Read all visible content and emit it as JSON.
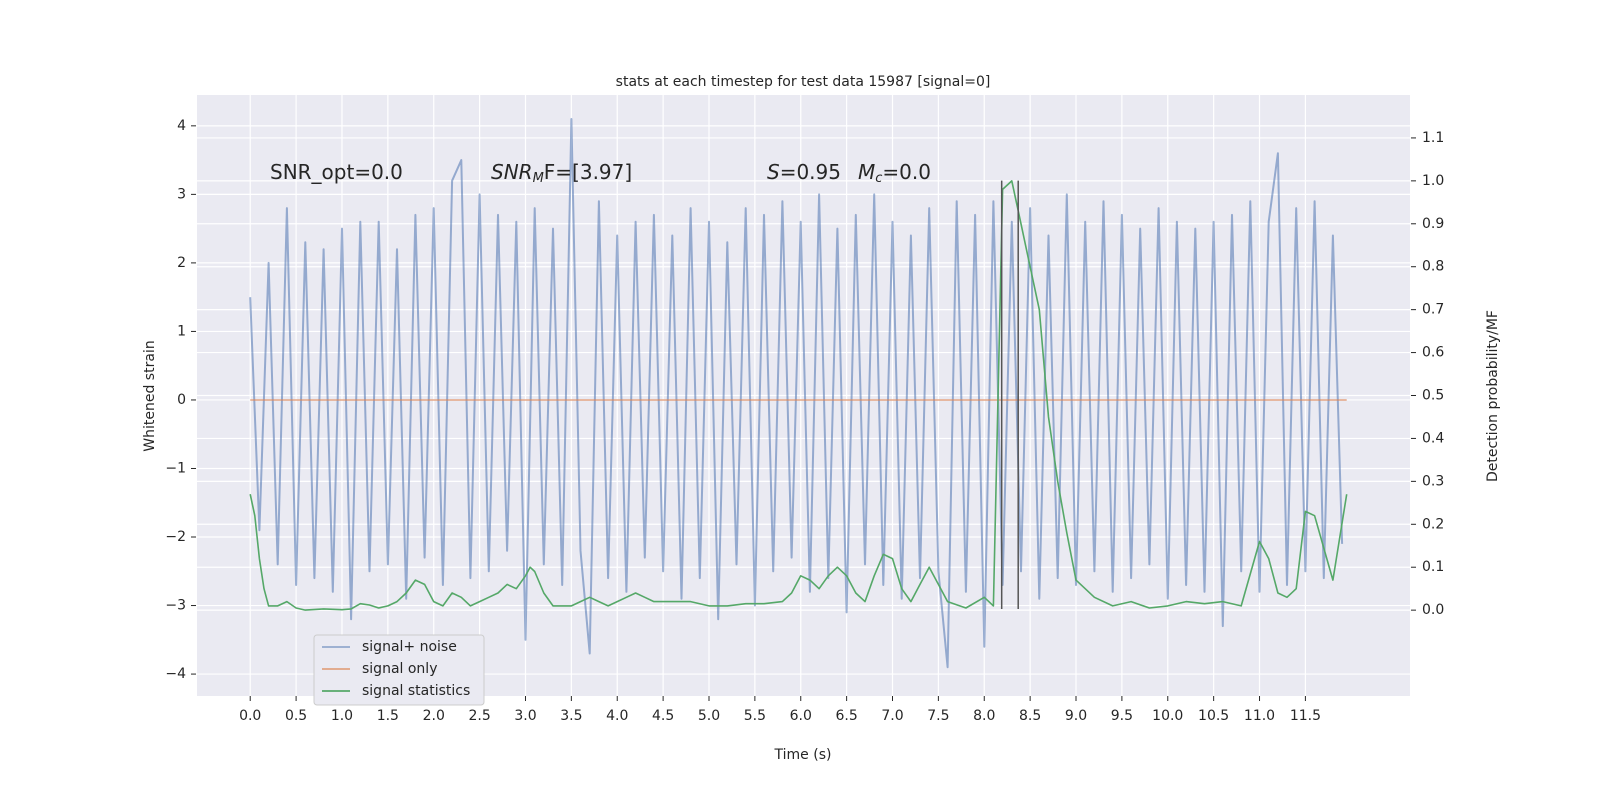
{
  "chart_data": {
    "type": "line",
    "title": "stats at each timestep for test data 15987 [signal=0]",
    "xlabel": "Time (s)",
    "ylabel": "Whitened strain",
    "y2label": "Detection probability/MF",
    "xlim": [
      -0.58,
      12.64
    ],
    "ylim": [
      -4.32,
      4.45
    ],
    "y2lim": [
      -0.2,
      1.2
    ],
    "xticks": [
      {
        "value": 0,
        "label": "0.0"
      },
      0.5,
      {
        "value": 1,
        "label": "1.0"
      },
      1.5,
      {
        "value": 2,
        "label": "2.0"
      },
      2.5,
      {
        "value": 3,
        "label": "3.0"
      },
      3.5,
      {
        "value": 4,
        "label": "4.0"
      },
      4.5,
      {
        "value": 5,
        "label": "5.0"
      },
      5.5,
      {
        "value": 6,
        "label": "6.0"
      },
      6.5,
      {
        "value": 7,
        "label": "7.0"
      },
      7.5,
      {
        "value": 8,
        "label": "8.0"
      },
      8.5,
      {
        "value": 9,
        "label": "9.0"
      },
      9.5,
      {
        "value": 10,
        "label": "10.0"
      },
      10.5,
      {
        "value": 11,
        "label": "11.0"
      },
      11.5
    ],
    "yticks": [
      {
        "value": -4,
        "label": "−4"
      },
      {
        "value": -3,
        "label": "−3"
      },
      {
        "value": -2,
        "label": "−2"
      },
      {
        "value": -1,
        "label": "−1"
      },
      0,
      1,
      2,
      3,
      4
    ],
    "y2ticks": [
      {
        "value": 0,
        "label": "0.0"
      },
      0.1,
      0.2,
      0.3,
      0.4,
      0.5,
      0.6,
      0.7,
      0.8,
      0.9,
      {
        "value": 1,
        "label": "1.0"
      },
      1.1
    ],
    "grid": true,
    "legend": "lower left",
    "annotations": [
      [
        "SNR_opt=0.0"
      ],
      [
        "SNR",
        "M",
        "F=[3.97]"
      ],
      [
        "S",
        "=0.95"
      ],
      [
        "M",
        "c",
        "=0.0"
      ]
    ],
    "markers": {
      "x": [
        8.19,
        8.37
      ],
      "ymin": -3.05,
      "ymax": 3.2,
      "color": "#555555"
    },
    "series": [
      {
        "name": "signal+ noise",
        "color": "#4c72b0",
        "opacity": 0.55,
        "x": [
          0,
          0.1,
          0.2,
          0.3,
          0.4,
          0.5,
          0.6,
          0.7,
          0.8,
          0.9,
          1,
          1.1,
          1.2,
          1.3,
          1.4,
          1.5,
          1.6,
          1.7,
          1.8,
          1.9,
          2,
          2.1,
          2.2,
          2.3,
          2.4,
          2.5,
          2.6,
          2.7,
          2.8,
          2.9,
          3,
          3.1,
          3.2,
          3.3,
          3.4,
          3.5,
          3.6,
          3.7,
          3.8,
          3.9,
          4,
          4.1,
          4.2,
          4.3,
          4.4,
          4.5,
          4.6,
          4.7,
          4.8,
          4.9,
          5,
          5.1,
          5.2,
          5.3,
          5.4,
          5.5,
          5.6,
          5.7,
          5.8,
          5.9,
          6,
          6.1,
          6.2,
          6.3,
          6.4,
          6.5,
          6.6,
          6.7,
          6.8,
          6.9,
          7,
          7.1,
          7.2,
          7.3,
          7.4,
          7.5,
          7.6,
          7.7,
          7.8,
          7.9,
          8,
          8.1,
          8.2,
          8.3,
          8.4,
          8.5,
          8.6,
          8.7,
          8.8,
          8.9,
          9,
          9.1,
          9.2,
          9.3,
          9.4,
          9.5,
          9.6,
          9.7,
          9.8,
          9.9,
          10,
          10.1,
          10.2,
          10.3,
          10.4,
          10.5,
          10.6,
          10.7,
          10.8,
          10.9,
          11,
          11.1,
          11.2,
          11.3,
          11.4,
          11.5,
          11.6,
          11.7,
          11.8,
          11.9
        ],
        "values": [
          1.5,
          -1.9,
          2.0,
          -2.4,
          2.8,
          -2.7,
          2.3,
          -2.6,
          2.2,
          -2.8,
          2.5,
          -3.2,
          2.6,
          -2.5,
          2.6,
          -2.4,
          2.2,
          -2.9,
          2.7,
          -2.3,
          2.8,
          -2.7,
          3.2,
          3.5,
          -2.6,
          3.0,
          -2.5,
          2.7,
          -2.2,
          2.6,
          -3.5,
          2.8,
          -2.4,
          2.5,
          -2.7,
          4.1,
          -2.2,
          -3.7,
          2.9,
          -2.6,
          2.4,
          -2.8,
          2.6,
          -2.3,
          2.7,
          -2.5,
          2.4,
          -2.9,
          2.8,
          -2.6,
          2.6,
          -3.2,
          2.3,
          -2.4,
          2.8,
          -3.0,
          2.7,
          -2.5,
          2.9,
          -2.3,
          2.6,
          -2.8,
          3.0,
          -2.6,
          2.5,
          -3.1,
          2.7,
          -2.4,
          3.0,
          -2.7,
          2.6,
          -2.9,
          2.4,
          -2.6,
          2.8,
          -2.5,
          -3.9,
          2.9,
          -2.8,
          2.7,
          -3.6,
          2.9,
          -2.7,
          2.6,
          -2.5,
          2.8,
          -2.9,
          2.4,
          -2.6,
          3.0,
          -2.7,
          2.6,
          -2.5,
          2.9,
          -2.8,
          2.7,
          -2.6,
          2.5,
          -2.4,
          2.8,
          -2.9,
          2.6,
          -2.7,
          2.5,
          -2.8,
          2.6,
          -3.3,
          2.7,
          -2.5,
          2.9,
          -2.8,
          2.6,
          3.6,
          -2.7,
          2.8,
          -2.5,
          2.9,
          -2.6,
          2.4,
          -2.1
        ]
      },
      {
        "name": "signal only",
        "color": "#dd8452",
        "opacity": 0.7,
        "x": [
          0,
          11.95
        ],
        "values": [
          0,
          0
        ]
      },
      {
        "name": "signal statistics",
        "color": "#55a868",
        "opacity": 1,
        "axis": "y2",
        "x": [
          0,
          0.05,
          0.1,
          0.15,
          0.2,
          0.3,
          0.4,
          0.5,
          0.6,
          0.8,
          1.0,
          1.1,
          1.2,
          1.3,
          1.4,
          1.5,
          1.6,
          1.7,
          1.8,
          1.9,
          2.0,
          2.1,
          2.2,
          2.3,
          2.4,
          2.5,
          2.6,
          2.7,
          2.8,
          2.9,
          3.0,
          3.05,
          3.1,
          3.2,
          3.3,
          3.4,
          3.5,
          3.6,
          3.7,
          3.8,
          3.9,
          4.0,
          4.1,
          4.2,
          4.3,
          4.4,
          4.6,
          4.8,
          5.0,
          5.2,
          5.4,
          5.6,
          5.8,
          5.9,
          6.0,
          6.1,
          6.2,
          6.3,
          6.4,
          6.5,
          6.6,
          6.7,
          6.8,
          6.9,
          7.0,
          7.1,
          7.2,
          7.3,
          7.4,
          7.5,
          7.6,
          7.8,
          8.0,
          8.1,
          8.2,
          8.3,
          8.4,
          8.5,
          8.6,
          8.7,
          8.8,
          8.9,
          9.0,
          9.2,
          9.4,
          9.6,
          9.8,
          10.0,
          10.2,
          10.4,
          10.6,
          10.8,
          11.0,
          11.1,
          11.2,
          11.3,
          11.4,
          11.5,
          11.6,
          11.8,
          11.95
        ],
        "values": [
          0.27,
          0.22,
          0.12,
          0.05,
          0.01,
          0.01,
          0.02,
          0.005,
          0.0,
          0.003,
          0.001,
          0.003,
          0.015,
          0.012,
          0.005,
          0.01,
          0.02,
          0.04,
          0.07,
          0.06,
          0.02,
          0.01,
          0.04,
          0.03,
          0.01,
          0.02,
          0.03,
          0.04,
          0.06,
          0.05,
          0.08,
          0.1,
          0.09,
          0.04,
          0.01,
          0.01,
          0.01,
          0.02,
          0.03,
          0.02,
          0.01,
          0.02,
          0.03,
          0.04,
          0.03,
          0.02,
          0.02,
          0.02,
          0.01,
          0.01,
          0.015,
          0.015,
          0.02,
          0.04,
          0.08,
          0.07,
          0.05,
          0.08,
          0.1,
          0.08,
          0.04,
          0.02,
          0.08,
          0.13,
          0.12,
          0.05,
          0.02,
          0.06,
          0.1,
          0.06,
          0.02,
          0.005,
          0.03,
          0.01,
          0.98,
          1.0,
          0.9,
          0.8,
          0.7,
          0.45,
          0.3,
          0.18,
          0.07,
          0.03,
          0.01,
          0.02,
          0.005,
          0.01,
          0.02,
          0.015,
          0.02,
          0.01,
          0.16,
          0.12,
          0.04,
          0.03,
          0.05,
          0.23,
          0.22,
          0.07,
          0.27
        ]
      }
    ]
  }
}
